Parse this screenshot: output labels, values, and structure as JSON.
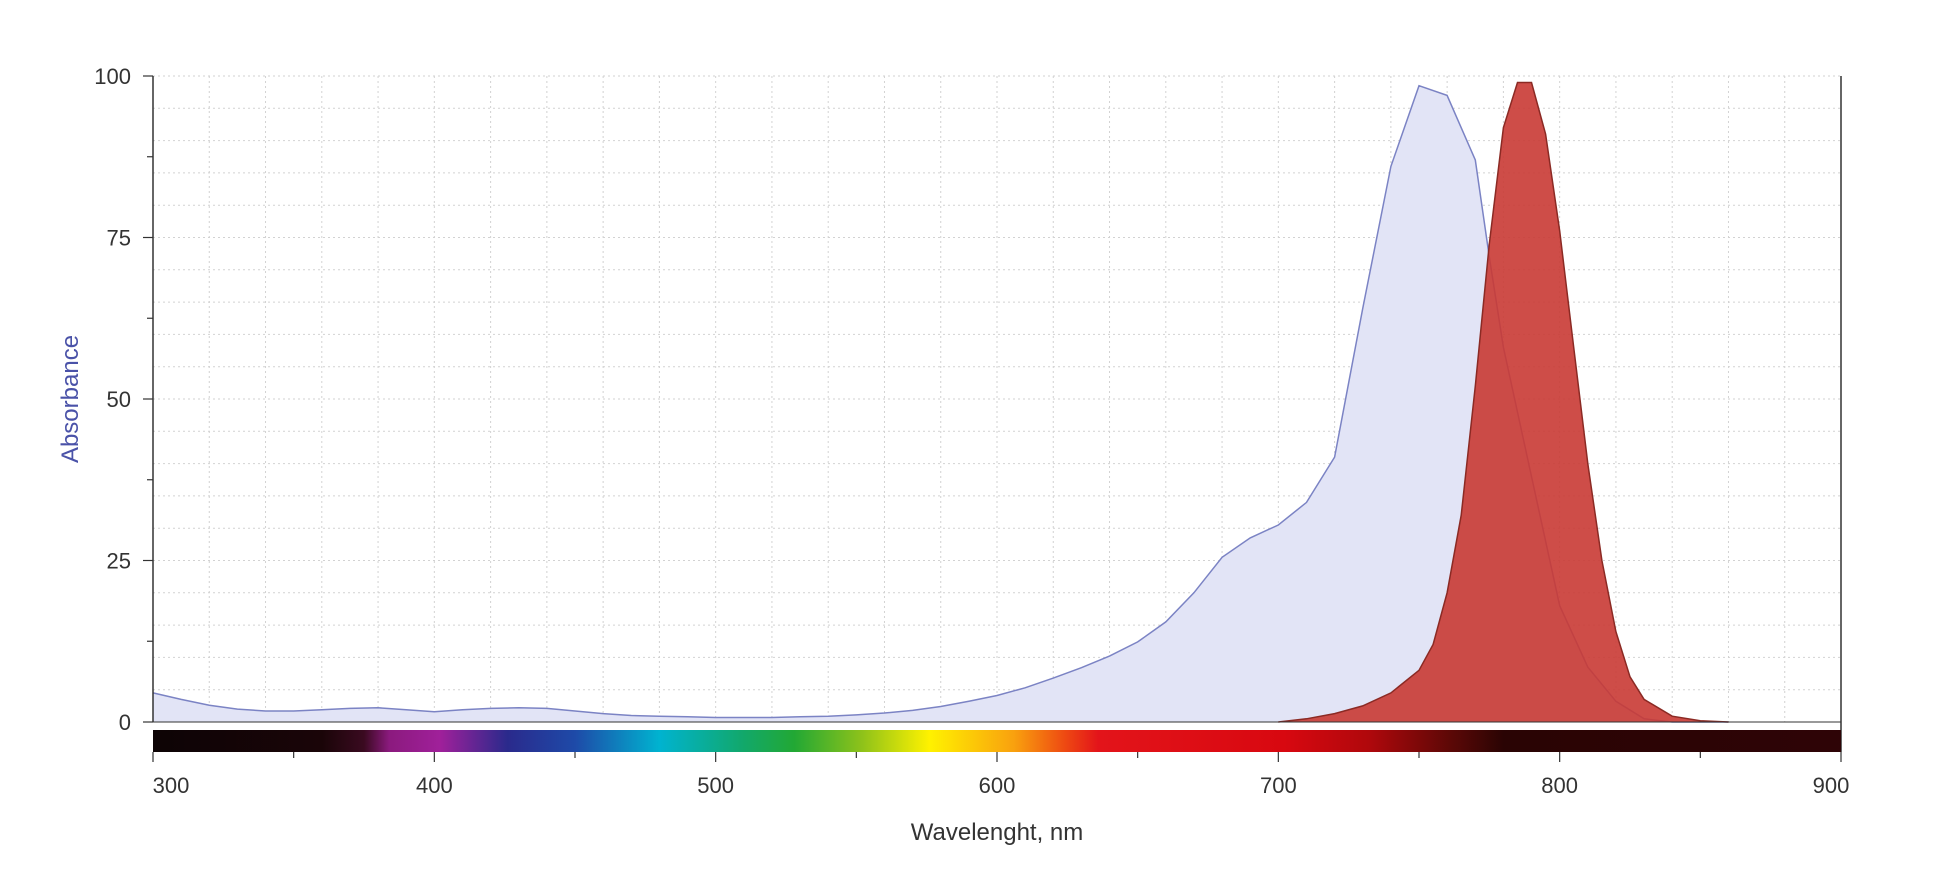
{
  "chart_data": {
    "type": "area",
    "xlabel": "Wavelenght, nm",
    "ylabel": "Absorbance",
    "xlim": [
      300,
      900
    ],
    "ylim": [
      0,
      100
    ],
    "x_ticks": [
      "300",
      "400",
      "500",
      "600",
      "700",
      "800",
      "900"
    ],
    "y_ticks": [
      "0",
      "25",
      "50",
      "75",
      "100"
    ],
    "grid": true,
    "spectrum_bar": true,
    "series": [
      {
        "color": "#7b83c4",
        "fill": "#e2e4f6",
        "x": [
          300,
          310,
          320,
          330,
          340,
          350,
          360,
          370,
          380,
          390,
          400,
          410,
          420,
          430,
          440,
          450,
          460,
          470,
          480,
          490,
          500,
          510,
          520,
          530,
          540,
          550,
          560,
          570,
          580,
          590,
          600,
          610,
          620,
          630,
          640,
          650,
          660,
          670,
          680,
          690,
          700,
          710,
          720,
          730,
          740,
          750,
          760,
          770,
          775,
          780,
          790,
          800,
          810,
          820,
          830,
          840,
          850,
          860
        ],
        "values": [
          4.5,
          3.5,
          2.6,
          2.0,
          1.7,
          1.7,
          1.9,
          2.1,
          2.2,
          1.9,
          1.6,
          1.9,
          2.1,
          2.2,
          2.1,
          1.7,
          1.3,
          1.0,
          0.9,
          0.8,
          0.7,
          0.7,
          0.7,
          0.8,
          0.9,
          1.1,
          1.4,
          1.8,
          2.4,
          3.2,
          4.1,
          5.3,
          6.8,
          8.4,
          10.2,
          12.4,
          15.5,
          20.0,
          25.5,
          28.5,
          30.5,
          34.0,
          41.0,
          64.0,
          86.0,
          98.5,
          97.0,
          87.0,
          72.0,
          58.0,
          38.0,
          18.0,
          8.5,
          3.2,
          0.5,
          0.0,
          0.0,
          0.0
        ]
      },
      {
        "color": "#8b2a24",
        "fill": "#c93a34",
        "x": [
          700,
          710,
          720,
          730,
          740,
          750,
          755,
          760,
          765,
          770,
          775,
          780,
          785,
          790,
          795,
          800,
          805,
          810,
          815,
          820,
          825,
          830,
          840,
          850,
          860
        ],
        "values": [
          0.0,
          0.5,
          1.3,
          2.5,
          4.5,
          8.0,
          12.0,
          20.0,
          32.0,
          52.0,
          74.0,
          92.0,
          99.0,
          99.0,
          91.0,
          76.0,
          58.0,
          40.0,
          25.0,
          14.0,
          7.0,
          3.5,
          0.9,
          0.2,
          0.0
        ]
      }
    ]
  }
}
